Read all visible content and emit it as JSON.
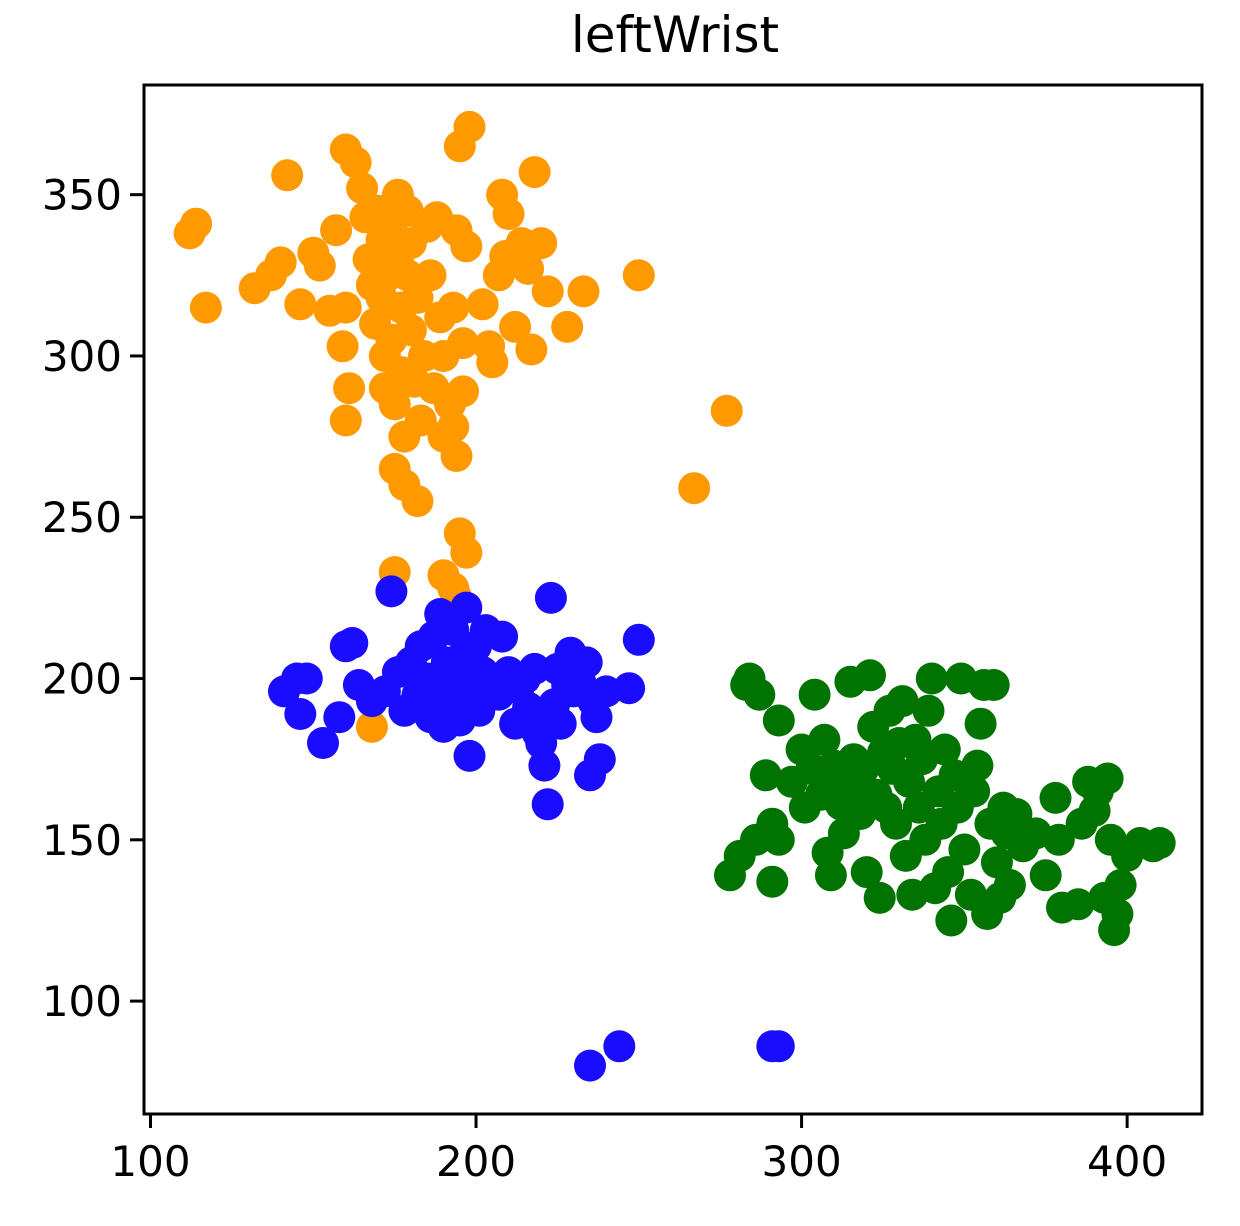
{
  "chart_data": {
    "type": "scatter",
    "title": "leftWrist",
    "xlabel": "",
    "ylabel": "",
    "xlim": [
      98,
      423
    ],
    "ylim": [
      65,
      384
    ],
    "xticks": [
      100,
      200,
      300,
      400
    ],
    "xtick_labels": [
      "100",
      "200",
      "300",
      "400"
    ],
    "yticks": [
      100,
      150,
      200,
      250,
      300,
      350
    ],
    "ytick_labels": [
      "100",
      "150",
      "200",
      "250",
      "300",
      "350"
    ],
    "grid": false,
    "legend": "none",
    "series": [
      {
        "color": "#ff9900",
        "points": [
          [
            112,
            338
          ],
          [
            114,
            341
          ],
          [
            117,
            315
          ],
          [
            132,
            321
          ],
          [
            137,
            325
          ],
          [
            140,
            329
          ],
          [
            142,
            356
          ],
          [
            146,
            316
          ],
          [
            150,
            332
          ],
          [
            152,
            328
          ],
          [
            155,
            314
          ],
          [
            157,
            339
          ],
          [
            159,
            303
          ],
          [
            160,
            315
          ],
          [
            161,
            290
          ],
          [
            160,
            280
          ],
          [
            160,
            364
          ],
          [
            163,
            360
          ],
          [
            165,
            352
          ],
          [
            166,
            343
          ],
          [
            167,
            330
          ],
          [
            168,
            322
          ],
          [
            169,
            310
          ],
          [
            170,
            345
          ],
          [
            171,
            336
          ],
          [
            171,
            318
          ],
          [
            172,
            300
          ],
          [
            172,
            290
          ],
          [
            173,
            325
          ],
          [
            174,
            340
          ],
          [
            174,
            305
          ],
          [
            175,
            285
          ],
          [
            175,
            265
          ],
          [
            176,
            350
          ],
          [
            176,
            330
          ],
          [
            177,
            315
          ],
          [
            177,
            295
          ],
          [
            178,
            275
          ],
          [
            178,
            260
          ],
          [
            179,
            345
          ],
          [
            179,
            325
          ],
          [
            180,
            335
          ],
          [
            180,
            308
          ],
          [
            181,
            292
          ],
          [
            182,
            318
          ],
          [
            182,
            255
          ],
          [
            183,
            280
          ],
          [
            184,
            300
          ],
          [
            185,
            340
          ],
          [
            186,
            325
          ],
          [
            187,
            290
          ],
          [
            188,
            343
          ],
          [
            189,
            312
          ],
          [
            190,
            300
          ],
          [
            190,
            275
          ],
          [
            192,
            285
          ],
          [
            193,
            278
          ],
          [
            193,
            315
          ],
          [
            194,
            339
          ],
          [
            194,
            269
          ],
          [
            196,
            304
          ],
          [
            196,
            289
          ],
          [
            197,
            334
          ],
          [
            195,
            365
          ],
          [
            198,
            371
          ],
          [
            202,
            316
          ],
          [
            204,
            303
          ],
          [
            205,
            298
          ],
          [
            207,
            325
          ],
          [
            208,
            350
          ],
          [
            209,
            331
          ],
          [
            210,
            344
          ],
          [
            212,
            309
          ],
          [
            214,
            335
          ],
          [
            216,
            327
          ],
          [
            217,
            302
          ],
          [
            218,
            357
          ],
          [
            220,
            335
          ],
          [
            222,
            320
          ],
          [
            228,
            309
          ],
          [
            233,
            320
          ],
          [
            250,
            325
          ],
          [
            267,
            259
          ],
          [
            277,
            283
          ],
          [
            175,
            233
          ],
          [
            190,
            232
          ],
          [
            193,
            228
          ],
          [
            195,
            245
          ],
          [
            197,
            239
          ],
          [
            194,
            225
          ],
          [
            168,
            185
          ]
        ]
      },
      {
        "color": "#1a0dff",
        "points": [
          [
            141,
            196
          ],
          [
            145,
            200
          ],
          [
            146,
            189
          ],
          [
            148,
            200
          ],
          [
            153,
            180
          ],
          [
            158,
            188
          ],
          [
            160,
            210
          ],
          [
            162,
            211
          ],
          [
            164,
            198
          ],
          [
            168,
            193
          ],
          [
            172,
            196
          ],
          [
            174,
            227
          ],
          [
            176,
            202
          ],
          [
            178,
            190
          ],
          [
            180,
            205
          ],
          [
            182,
            195
          ],
          [
            183,
            210
          ],
          [
            185,
            200
          ],
          [
            186,
            188
          ],
          [
            187,
            213
          ],
          [
            188,
            197
          ],
          [
            189,
            220
          ],
          [
            190,
            185
          ],
          [
            191,
            205
          ],
          [
            192,
            193
          ],
          [
            193,
            215
          ],
          [
            194,
            200
          ],
          [
            195,
            187
          ],
          [
            196,
            207
          ],
          [
            197,
            222
          ],
          [
            198,
            176
          ],
          [
            199,
            196
          ],
          [
            200,
            210
          ],
          [
            201,
            190
          ],
          [
            202,
            202
          ],
          [
            203,
            215
          ],
          [
            205,
            198
          ],
          [
            207,
            195
          ],
          [
            208,
            213
          ],
          [
            210,
            202
          ],
          [
            212,
            186
          ],
          [
            213,
            197
          ],
          [
            215,
            200
          ],
          [
            216,
            191
          ],
          [
            217,
            188
          ],
          [
            218,
            203
          ],
          [
            219,
            183
          ],
          [
            220,
            180
          ],
          [
            221,
            173
          ],
          [
            222,
            161
          ],
          [
            223,
            225
          ],
          [
            224,
            192
          ],
          [
            225,
            203
          ],
          [
            226,
            186
          ],
          [
            228,
            198
          ],
          [
            229,
            208
          ],
          [
            230,
            196
          ],
          [
            232,
            199
          ],
          [
            234,
            205
          ],
          [
            235,
            170
          ],
          [
            236,
            193
          ],
          [
            237,
            188
          ],
          [
            238,
            175
          ],
          [
            240,
            196
          ],
          [
            247,
            197
          ],
          [
            250,
            212
          ],
          [
            235,
            80
          ],
          [
            244,
            86
          ],
          [
            291,
            86
          ],
          [
            293,
            86
          ]
        ]
      },
      {
        "color": "#007300",
        "points": [
          [
            278,
            139
          ],
          [
            281,
            145
          ],
          [
            283,
            198
          ],
          [
            284,
            200
          ],
          [
            286,
            150
          ],
          [
            287,
            195
          ],
          [
            289,
            170
          ],
          [
            291,
            137
          ],
          [
            291,
            155
          ],
          [
            293,
            150
          ],
          [
            293,
            187
          ],
          [
            297,
            168
          ],
          [
            300,
            178
          ],
          [
            301,
            160
          ],
          [
            303,
            172
          ],
          [
            304,
            195
          ],
          [
            306,
            164
          ],
          [
            307,
            181
          ],
          [
            308,
            146
          ],
          [
            309,
            139
          ],
          [
            310,
            173
          ],
          [
            311,
            170
          ],
          [
            312,
            161
          ],
          [
            313,
            152
          ],
          [
            314,
            167
          ],
          [
            315,
            199
          ],
          [
            316,
            175
          ],
          [
            317,
            165
          ],
          [
            318,
            158
          ],
          [
            319,
            172
          ],
          [
            320,
            140
          ],
          [
            321,
            201
          ],
          [
            322,
            185
          ],
          [
            323,
            164
          ],
          [
            324,
            132
          ],
          [
            325,
            177
          ],
          [
            326,
            160
          ],
          [
            327,
            190
          ],
          [
            328,
            172
          ],
          [
            329,
            155
          ],
          [
            330,
            180
          ],
          [
            331,
            193
          ],
          [
            332,
            145
          ],
          [
            333,
            168
          ],
          [
            334,
            133
          ],
          [
            335,
            181
          ],
          [
            336,
            160
          ],
          [
            337,
            175
          ],
          [
            338,
            150
          ],
          [
            339,
            190
          ],
          [
            340,
            200
          ],
          [
            341,
            135
          ],
          [
            342,
            165
          ],
          [
            343,
            155
          ],
          [
            344,
            178
          ],
          [
            345,
            140
          ],
          [
            346,
            125
          ],
          [
            347,
            170
          ],
          [
            348,
            160
          ],
          [
            349,
            200
          ],
          [
            350,
            147
          ],
          [
            351,
            168
          ],
          [
            352,
            133
          ],
          [
            353,
            165
          ],
          [
            354,
            173
          ],
          [
            355,
            186
          ],
          [
            356,
            198
          ],
          [
            357,
            127
          ],
          [
            358,
            155
          ],
          [
            359,
            198
          ],
          [
            360,
            143
          ],
          [
            361,
            132
          ],
          [
            362,
            160
          ],
          [
            363,
            152
          ],
          [
            364,
            136
          ],
          [
            366,
            158
          ],
          [
            368,
            148
          ],
          [
            372,
            152
          ],
          [
            375,
            139
          ],
          [
            378,
            163
          ],
          [
            379,
            150
          ],
          [
            380,
            129
          ],
          [
            385,
            130
          ],
          [
            386,
            155
          ],
          [
            388,
            168
          ],
          [
            390,
            159
          ],
          [
            391,
            165
          ],
          [
            393,
            132
          ],
          [
            394,
            169
          ],
          [
            395,
            150
          ],
          [
            396,
            122
          ],
          [
            397,
            127
          ],
          [
            398,
            136
          ],
          [
            400,
            145
          ],
          [
            404,
            149
          ],
          [
            408,
            148
          ],
          [
            410,
            149
          ]
        ]
      }
    ]
  }
}
